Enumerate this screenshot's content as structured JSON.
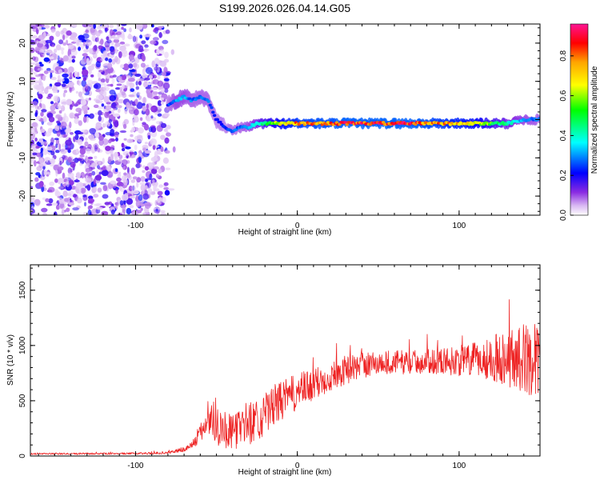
{
  "figure_title": "S199.2026.026.04.14.G05",
  "colorbar": {
    "label": "Normalized spectral amplitude",
    "ticks": [
      0.0,
      0.2,
      0.4,
      0.6,
      0.8
    ],
    "tick_labels": [
      "0.0",
      "0.2",
      "0.4",
      "0.6",
      "0.8"
    ],
    "range": [
      0,
      0.96
    ],
    "colormap": [
      "#ffffff",
      "#d9b8f2",
      "#8a2be2",
      "#0000ff",
      "#00ffff",
      "#00ff00",
      "#ffff00",
      "#ffa500",
      "#ff0000",
      "#ff1493"
    ]
  },
  "chart_data": [
    {
      "type": "heatmap",
      "xlabel": "Height of straight line (km)",
      "ylabel": "Frequency (Hz)",
      "xlim": [
        -165,
        150
      ],
      "ylim": [
        -25,
        25
      ],
      "x_ticks": [
        -100,
        0,
        100
      ],
      "x_tick_labels": [
        "-100",
        "0",
        "100"
      ],
      "y_ticks": [
        -20,
        -10,
        0,
        10,
        20
      ],
      "y_tick_labels": [
        "-20",
        "-10",
        "0",
        "10",
        "20"
      ],
      "noise_region_x": [
        -165,
        -80
      ],
      "ridge": {
        "x": [
          -80,
          -75,
          -70,
          -65,
          -60,
          -55,
          -50,
          -45,
          -40,
          -35,
          -30,
          -25,
          -20,
          -15,
          -10,
          -5,
          0,
          10,
          20,
          30,
          40,
          50,
          60,
          70,
          80,
          90,
          100,
          110,
          120,
          130,
          140,
          150
        ],
        "frequency_hz": [
          4,
          5,
          6,
          5,
          6,
          5,
          0,
          -2,
          -3,
          -2,
          -2,
          -1,
          -1,
          -1,
          -1,
          -1,
          -1,
          -1,
          -1,
          -1,
          -1,
          -1,
          -1,
          -1,
          -1,
          -1,
          -1,
          -1,
          -1,
          -1,
          0,
          0
        ],
        "amplitude": [
          0.25,
          0.35,
          0.35,
          0.3,
          0.3,
          0.3,
          0.25,
          0.25,
          0.3,
          0.3,
          0.35,
          0.45,
          0.55,
          0.65,
          0.75,
          0.8,
          0.85,
          0.9,
          0.9,
          0.95,
          0.95,
          0.95,
          0.95,
          0.95,
          0.9,
          0.85,
          0.8,
          0.75,
          0.6,
          0.45,
          0.35,
          0.3
        ]
      }
    },
    {
      "type": "line",
      "xlabel": "Height of straight line (km)",
      "ylabel": "SNR (10 * v/v)",
      "xlim": [
        -165,
        150
      ],
      "ylim": [
        0,
        1730
      ],
      "x_ticks": [
        -100,
        0,
        100
      ],
      "x_tick_labels": [
        "-100",
        "0",
        "100"
      ],
      "y_ticks": [
        0,
        500,
        1000,
        1500
      ],
      "y_tick_labels": [
        "0",
        "500",
        "1000",
        "1500"
      ],
      "color": "#ee2222",
      "series": [
        {
          "x": [
            -165,
            -150,
            -135,
            -120,
            -105,
            -90,
            -80,
            -70,
            -65,
            -60,
            -55,
            -50,
            -45,
            -40,
            -35,
            -30,
            -25,
            -20,
            -15,
            -10,
            -5,
            0,
            10,
            20,
            30,
            40,
            50,
            60,
            70,
            80,
            90,
            100,
            110,
            120,
            130,
            140,
            150
          ],
          "values": [
            20,
            20,
            20,
            22,
            22,
            25,
            30,
            60,
            100,
            200,
            350,
            300,
            250,
            200,
            280,
            300,
            330,
            380,
            450,
            500,
            540,
            580,
            640,
            720,
            780,
            820,
            840,
            850,
            850,
            855,
            860,
            860,
            870,
            880,
            890,
            880,
            870
          ],
          "noise_amplitude": [
            8,
            8,
            8,
            8,
            8,
            10,
            12,
            25,
            40,
            80,
            180,
            200,
            180,
            160,
            180,
            200,
            200,
            190,
            190,
            180,
            170,
            170,
            150,
            140,
            130,
            120,
            110,
            110,
            110,
            110,
            120,
            140,
            160,
            200,
            260,
            320,
            330
          ]
        }
      ]
    }
  ]
}
